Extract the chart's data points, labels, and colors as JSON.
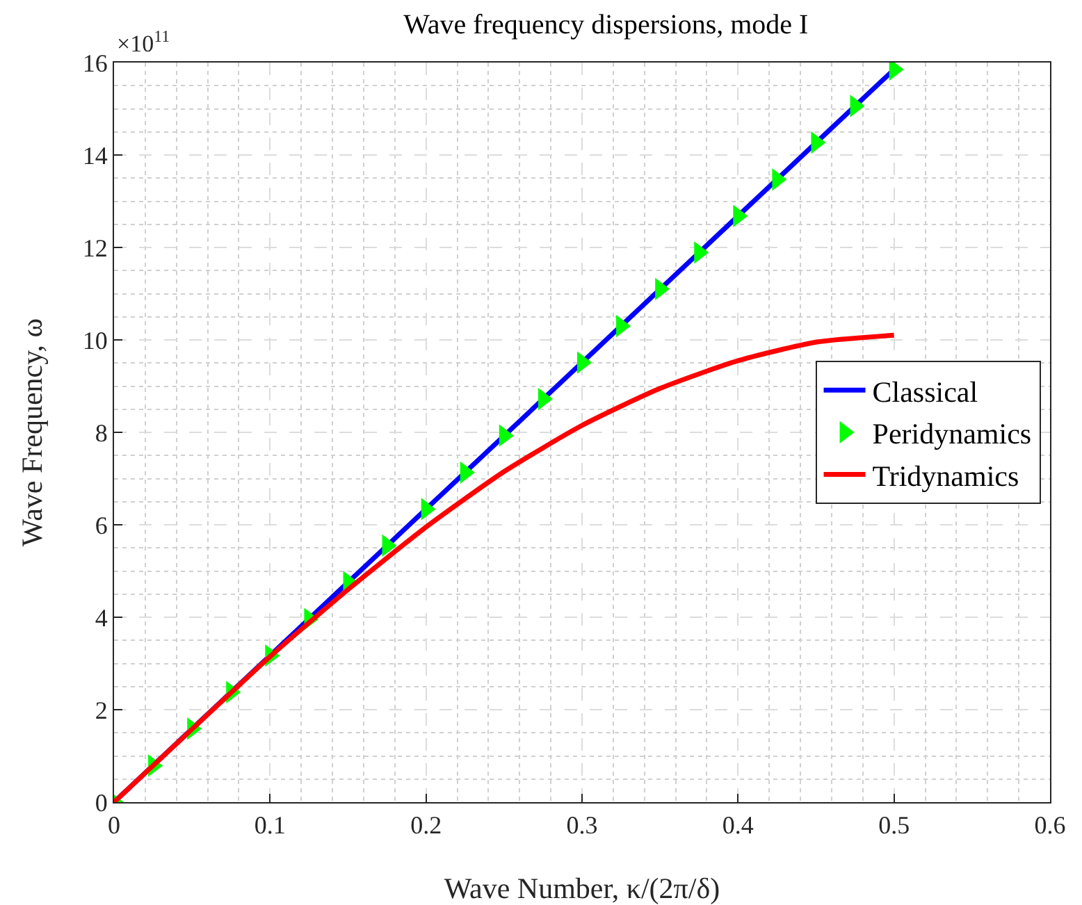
{
  "chart_data": {
    "type": "line",
    "title": "Wave frequency dispersions, mode I",
    "xlabel": "Wave Number, κ/(2π/δ)",
    "ylabel": "Wave Frequency, ω",
    "annotations": [
      "×10$^{11}$"
    ],
    "xlim": [
      0,
      0.6
    ],
    "xticks": [
      0,
      0.1,
      0.2,
      0.3,
      0.4,
      0.5,
      0.6
    ],
    "ylim": [
      0,
      16
    ],
    "yticks": [
      0,
      2,
      4,
      6,
      8,
      10,
      12,
      14,
      16
    ],
    "grid": true,
    "legend": "right",
    "series": [
      {
        "name": "Classical",
        "color": "#0000ff",
        "x": [
          0,
          0.5
        ],
        "values": [
          0,
          15.85
        ]
      },
      {
        "name": "Peridynamics",
        "type": "scatter",
        "marker": "triangle",
        "color": "#00ff00",
        "x": [
          0,
          0.025,
          0.05,
          0.075,
          0.1,
          0.125,
          0.15,
          0.175,
          0.2,
          0.225,
          0.25,
          0.275,
          0.3,
          0.325,
          0.35,
          0.375,
          0.4,
          0.425,
          0.45,
          0.475,
          0.5
        ],
        "values": [
          0,
          0.79,
          1.59,
          2.38,
          3.17,
          3.96,
          4.76,
          5.55,
          6.34,
          7.13,
          7.93,
          8.72,
          9.51,
          10.3,
          11.1,
          11.89,
          12.68,
          13.47,
          14.27,
          15.06,
          15.85
        ]
      },
      {
        "name": "Tridynamics",
        "color": "#ff0000",
        "x": [
          0,
          0.05,
          0.1,
          0.15,
          0.2,
          0.25,
          0.3,
          0.35,
          0.4,
          0.45,
          0.5
        ],
        "values": [
          0,
          1.58,
          3.15,
          4.6,
          5.95,
          7.15,
          8.15,
          8.95,
          9.55,
          9.95,
          10.1
        ]
      }
    ]
  }
}
